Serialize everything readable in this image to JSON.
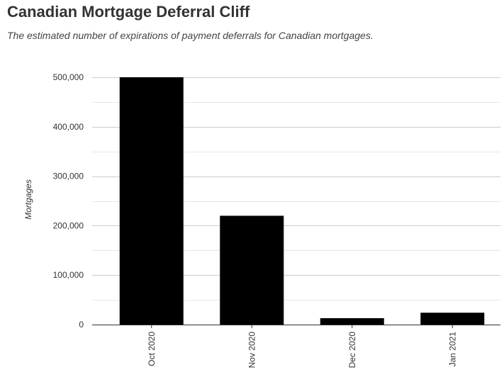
{
  "chart_data": {
    "type": "bar",
    "title": "Canadian Mortgage Deferral Cliff",
    "subtitle": "The estimated number of expirations of payment deferrals for Canadian mortgages.",
    "xlabel": "",
    "ylabel": "Mortgages",
    "categories": [
      "Oct 2020",
      "Nov 2020",
      "Dec 2020",
      "Jan 2021"
    ],
    "values": [
      500000,
      220000,
      13000,
      24000
    ],
    "ylim": [
      0,
      500000
    ],
    "yticks": [
      0,
      100000,
      200000,
      300000,
      400000,
      500000
    ],
    "ytick_labels": [
      "0",
      "100,000",
      "200,000",
      "300,000",
      "400,000",
      "500,000"
    ],
    "grid": true,
    "minor_grid": true,
    "bar_color": "#000000",
    "grid_color": "#cccccc",
    "minor_grid_color": "#e6e6e6"
  }
}
